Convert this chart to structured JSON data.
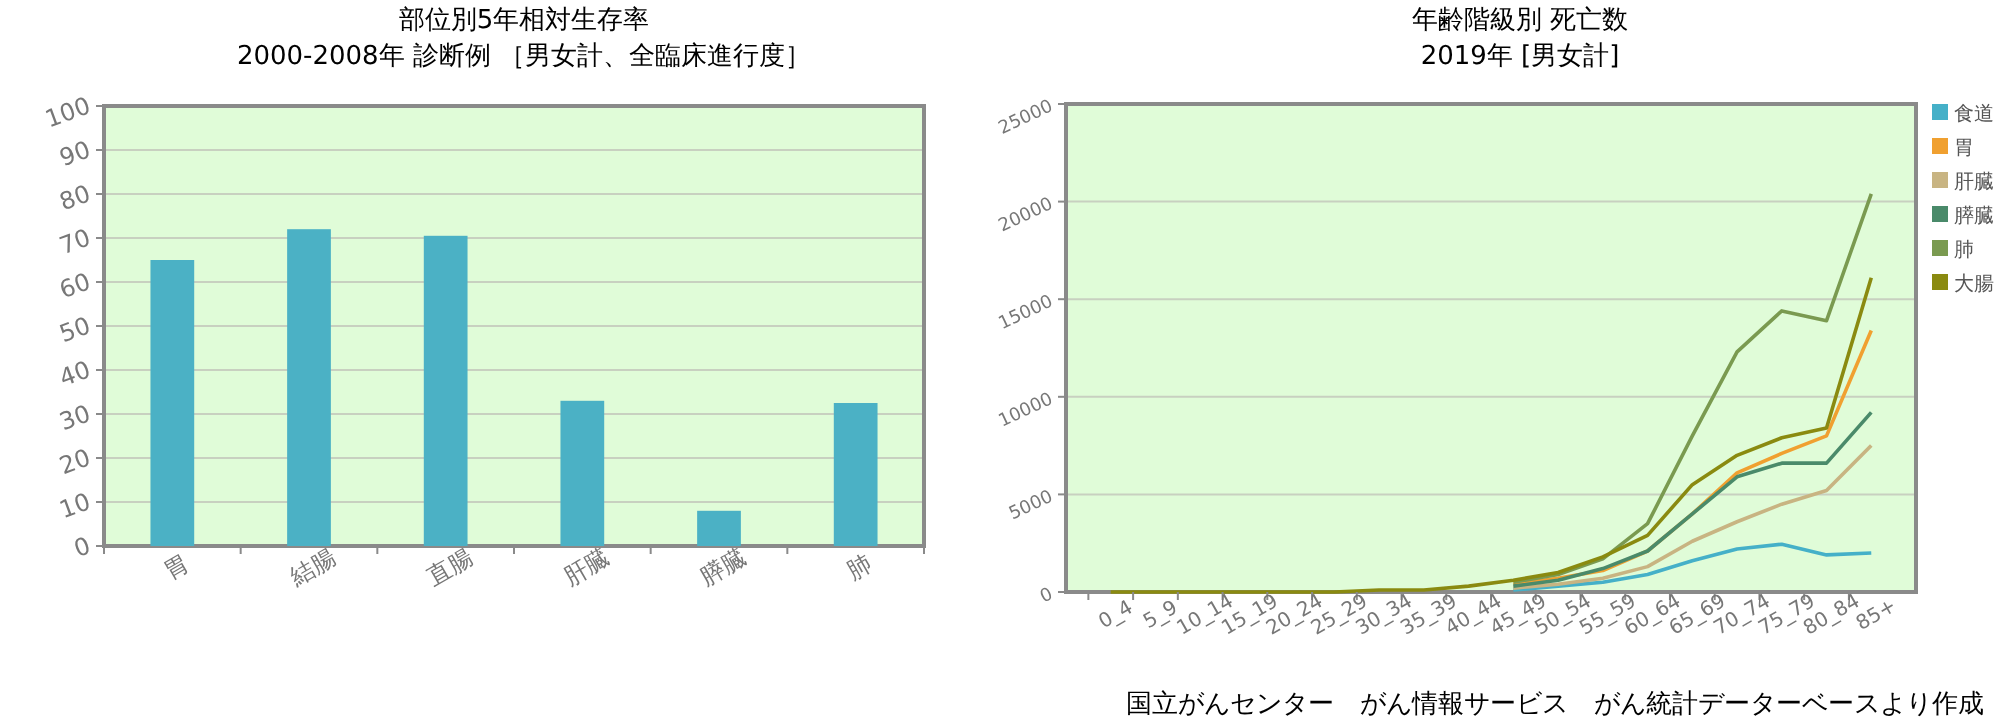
{
  "chart_data": [
    {
      "type": "bar",
      "title": "部位別5年相対生存率",
      "subtitle": "2000-2008年 診断例 ［男女計、全臨床進行度］",
      "categories": [
        "胃",
        "結腸",
        "直腸",
        "肝臓",
        "膵臓",
        "肺"
      ],
      "values": [
        65,
        72,
        70.5,
        33,
        8,
        32.5
      ],
      "color": "#4bb1c5",
      "ylim": [
        0,
        100
      ],
      "yticks": [
        0,
        10,
        20,
        30,
        40,
        50,
        60,
        70,
        80,
        90,
        100
      ],
      "grid": "y",
      "legend": false
    },
    {
      "type": "line",
      "title": "年齢階級別 死亡数",
      "subtitle": "2019年 [男女計]",
      "categories": [
        "0_4",
        "5_9",
        "10_14",
        "15_19",
        "20_24",
        "25_29",
        "30_34",
        "35_39",
        "40_44",
        "45_49",
        "50_54",
        "55_59",
        "60_64",
        "65_69",
        "70_74",
        "75_79",
        "80_84",
        "85+"
      ],
      "series": [
        {
          "name": "食道",
          "color": "#45b0c8",
          "values": [
            null,
            null,
            null,
            null,
            null,
            null,
            null,
            null,
            null,
            100,
            300,
            500,
            900,
            1600,
            2200,
            2450,
            1900,
            2000
          ]
        },
        {
          "name": "胃",
          "color": "#f0a030",
          "values": [
            null,
            null,
            null,
            null,
            null,
            null,
            null,
            null,
            null,
            400,
            700,
            1100,
            2100,
            4000,
            6100,
            7100,
            8000,
            13400
          ]
        },
        {
          "name": "肝臓",
          "color": "#c8b482",
          "values": [
            null,
            null,
            null,
            null,
            null,
            null,
            null,
            null,
            null,
            200,
            400,
            700,
            1300,
            2600,
            3600,
            4500,
            5200,
            7500
          ]
        },
        {
          "name": "膵臓",
          "color": "#4a8a6a",
          "values": [
            null,
            null,
            null,
            null,
            null,
            null,
            null,
            null,
            null,
            300,
            600,
            1200,
            2100,
            4000,
            5900,
            6600,
            6600,
            9200
          ]
        },
        {
          "name": "肺",
          "color": "#7a9a50",
          "values": [
            null,
            null,
            null,
            null,
            null,
            null,
            null,
            null,
            null,
            500,
            900,
            1700,
            3500,
            8000,
            12300,
            14400,
            13900,
            20400
          ]
        },
        {
          "name": "大腸",
          "color": "#8a8a10",
          "values": [
            0,
            0,
            0,
            0,
            0,
            0,
            100,
            100,
            300,
            600,
            1000,
            1800,
            2900,
            5500,
            7000,
            7900,
            8400,
            16100
          ]
        }
      ],
      "ylim": [
        0,
        25000
      ],
      "yticks": [
        0,
        5000,
        10000,
        15000,
        20000,
        25000
      ],
      "grid": "y",
      "legend": "right",
      "marker": "none",
      "line_style": "solid",
      "annotations": [
        "国立がんセンター　がん情報サービス　がん統計データーベースより作成"
      ]
    }
  ]
}
